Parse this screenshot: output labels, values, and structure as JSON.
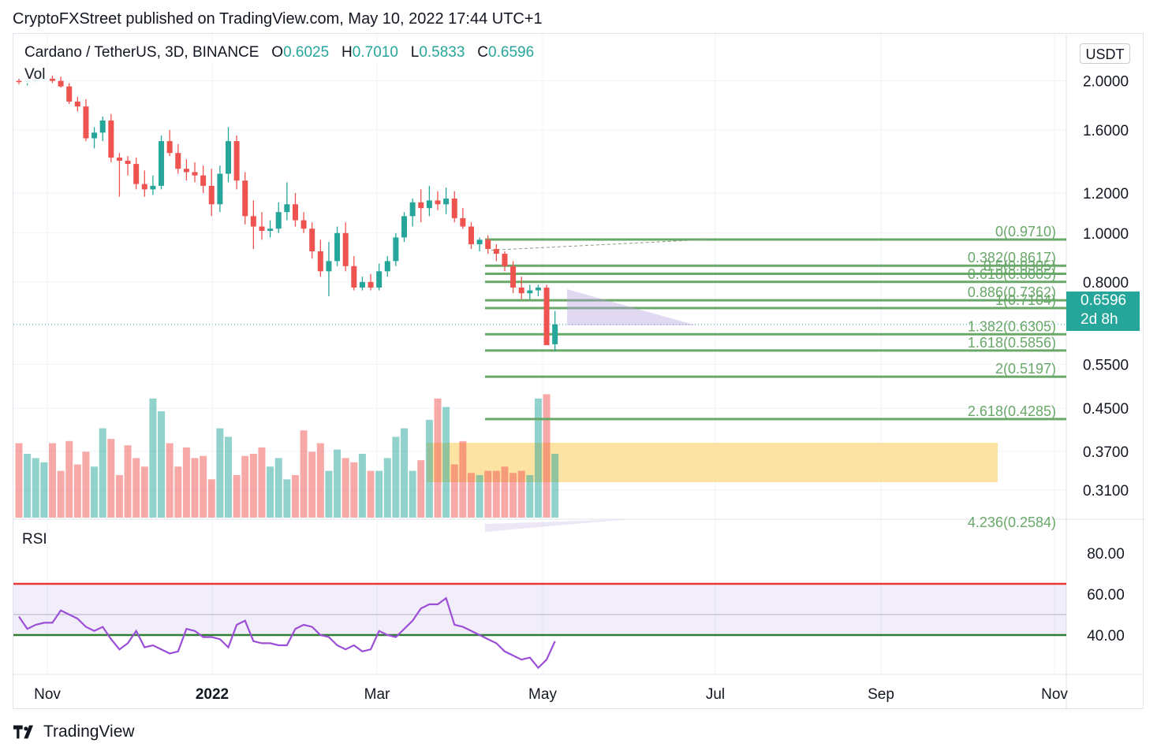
{
  "header": {
    "text": "CryptoFXStreet published on TradingView.com, May 10, 2022 17:44 UTC+1"
  },
  "legend": {
    "symbol": "Cardano / TetherUS, 3D, BINANCE",
    "o_label": "O",
    "o_value": "0.6025",
    "h_label": "H",
    "h_value": "0.7010",
    "l_label": "L",
    "l_value": "0.5833",
    "c_label": "C",
    "c_value": "0.6596"
  },
  "vol_label": "Vol",
  "rsi_label": "RSI",
  "currency_button": "USDT",
  "price_tag": {
    "price": "0.6596",
    "countdown": "2d 8h"
  },
  "footer": {
    "brand": "TradingView"
  },
  "colors": {
    "up": "#26a69a",
    "down": "#ef5350",
    "fib": "#6aa86a",
    "rsi": "#9c4fd6",
    "rsi_top": "#e53935",
    "rsi_bottom": "#2e7d32",
    "zone": "#fddc8c"
  },
  "chart_data": {
    "type": "candlestick",
    "y_scale": "log",
    "price_axis_labels": [
      "2.0000",
      "1.6000",
      "1.2000",
      "1.0000",
      "0.8000",
      "0.6596",
      "0.5500",
      "0.4500",
      "0.3700",
      "0.3100"
    ],
    "time_axis_labels": [
      "Nov",
      "2022",
      "Mar",
      "May",
      "Jul",
      "Sep",
      "Nov"
    ],
    "candles": [
      [
        2.0,
        2.02,
        1.97,
        1.99
      ],
      [
        1.99,
        2.01,
        1.96,
        2.0
      ],
      [
        2.0,
        2.03,
        1.98,
        2.01
      ],
      [
        2.01,
        2.04,
        1.99,
        2.02
      ],
      [
        2.02,
        2.05,
        1.98,
        2.0
      ],
      [
        2.0,
        2.04,
        1.94,
        1.95
      ],
      [
        1.95,
        1.98,
        1.8,
        1.82
      ],
      [
        1.82,
        1.86,
        1.74,
        1.78
      ],
      [
        1.78,
        1.84,
        1.52,
        1.54
      ],
      [
        1.54,
        1.62,
        1.47,
        1.58
      ],
      [
        1.58,
        1.7,
        1.52,
        1.67
      ],
      [
        1.67,
        1.72,
        1.38,
        1.41
      ],
      [
        1.41,
        1.44,
        1.18,
        1.39
      ],
      [
        1.39,
        1.42,
        1.3,
        1.37
      ],
      [
        1.37,
        1.41,
        1.22,
        1.25
      ],
      [
        1.25,
        1.33,
        1.18,
        1.22
      ],
      [
        1.22,
        1.3,
        1.19,
        1.24
      ],
      [
        1.24,
        1.56,
        1.22,
        1.52
      ],
      [
        1.52,
        1.6,
        1.42,
        1.44
      ],
      [
        1.44,
        1.5,
        1.31,
        1.34
      ],
      [
        1.34,
        1.4,
        1.27,
        1.32
      ],
      [
        1.32,
        1.38,
        1.26,
        1.3
      ],
      [
        1.3,
        1.36,
        1.2,
        1.24
      ],
      [
        1.24,
        1.34,
        1.08,
        1.14
      ],
      [
        1.14,
        1.36,
        1.1,
        1.31
      ],
      [
        1.31,
        1.62,
        1.26,
        1.52
      ],
      [
        1.52,
        1.56,
        1.22,
        1.27
      ],
      [
        1.27,
        1.32,
        1.04,
        1.08
      ],
      [
        1.08,
        1.16,
        0.93,
        1.03
      ],
      [
        1.03,
        1.1,
        0.97,
        1.01
      ],
      [
        1.01,
        1.06,
        0.98,
        1.02
      ],
      [
        1.02,
        1.15,
        1.0,
        1.1
      ],
      [
        1.1,
        1.26,
        1.06,
        1.14
      ],
      [
        1.14,
        1.2,
        1.03,
        1.06
      ],
      [
        1.06,
        1.1,
        1.0,
        1.02
      ],
      [
        1.02,
        1.05,
        0.89,
        0.92
      ],
      [
        0.92,
        0.97,
        0.82,
        0.84
      ],
      [
        0.84,
        0.96,
        0.75,
        0.88
      ],
      [
        0.88,
        1.03,
        0.86,
        1.0
      ],
      [
        1.0,
        1.05,
        0.84,
        0.86
      ],
      [
        0.86,
        0.9,
        0.77,
        0.78
      ],
      [
        0.78,
        0.82,
        0.77,
        0.8
      ],
      [
        0.8,
        0.83,
        0.77,
        0.78
      ],
      [
        0.78,
        0.87,
        0.77,
        0.84
      ],
      [
        0.84,
        0.9,
        0.82,
        0.88
      ],
      [
        0.88,
        1.0,
        0.86,
        0.98
      ],
      [
        0.98,
        1.1,
        0.96,
        1.08
      ],
      [
        1.08,
        1.17,
        1.03,
        1.15
      ],
      [
        1.15,
        1.22,
        1.05,
        1.12
      ],
      [
        1.12,
        1.24,
        1.08,
        1.16
      ],
      [
        1.16,
        1.21,
        1.11,
        1.14
      ],
      [
        1.14,
        1.23,
        1.09,
        1.17
      ],
      [
        1.17,
        1.21,
        1.05,
        1.07
      ],
      [
        1.07,
        1.12,
        1.02,
        1.03
      ],
      [
        1.03,
        1.05,
        0.93,
        0.95
      ],
      [
        0.95,
        0.98,
        0.92,
        0.97
      ],
      [
        0.97,
        0.99,
        0.91,
        0.93
      ],
      [
        0.93,
        0.95,
        0.88,
        0.91
      ],
      [
        0.91,
        0.92,
        0.84,
        0.86
      ],
      [
        0.86,
        0.88,
        0.76,
        0.78
      ],
      [
        0.78,
        0.82,
        0.74,
        0.76
      ],
      [
        0.76,
        0.79,
        0.74,
        0.77
      ],
      [
        0.77,
        0.79,
        0.75,
        0.78
      ],
      [
        0.78,
        0.79,
        0.6,
        0.6
      ],
      [
        0.6025,
        0.701,
        0.5833,
        0.6596
      ]
    ],
    "volume_relative": [
      0.35,
      0.3,
      0.28,
      0.26,
      0.35,
      0.22,
      0.36,
      0.25,
      0.31,
      0.24,
      0.42,
      0.37,
      0.2,
      0.34,
      0.28,
      0.24,
      0.56,
      0.5,
      0.35,
      0.24,
      0.33,
      0.28,
      0.29,
      0.18,
      0.42,
      0.38,
      0.2,
      0.29,
      0.3,
      0.33,
      0.24,
      0.28,
      0.18,
      0.2,
      0.41,
      0.31,
      0.35,
      0.22,
      0.32,
      0.28,
      0.26,
      0.3,
      0.22,
      0.22,
      0.28,
      0.38,
      0.42,
      0.22,
      0.27,
      0.46,
      0.56,
      0.52,
      0.25,
      0.36,
      0.21,
      0.2,
      0.22,
      0.22,
      0.24,
      0.21,
      0.22,
      0.2,
      0.56,
      0.58,
      0.3
    ],
    "fibonacci_levels": [
      {
        "label": "0(0.9710)",
        "value": 0.971
      },
      {
        "label": "0.382(0.8617)",
        "value": 0.8617
      },
      {
        "label": "0.5(0.8305)",
        "value": 0.8305
      },
      {
        "label": "0.618(0.8005)",
        "value": 0.8005
      },
      {
        "label": "0.886(0.7362)",
        "value": 0.7362
      },
      {
        "label": "1(0.7104)",
        "value": 0.7104
      },
      {
        "label": "1.382(0.6305)",
        "value": 0.6305
      },
      {
        "label": "1.618(0.5856)",
        "value": 0.5856
      },
      {
        "label": "2(0.5197)",
        "value": 0.5197
      },
      {
        "label": "2.618(0.4285)",
        "value": 0.4285
      },
      {
        "label": "4.236(0.2584)",
        "value": 0.2584
      }
    ],
    "rsi": {
      "axis_labels": [
        "80.00",
        "60.00",
        "40.00"
      ],
      "upper_band": 65,
      "lower_band": 40,
      "mid": 50,
      "values": [
        49,
        43,
        45,
        46,
        46,
        52,
        50,
        48,
        44,
        42,
        44,
        38,
        33,
        36,
        42,
        34,
        35,
        33,
        31,
        32,
        43,
        42,
        39,
        39,
        38,
        34,
        45,
        47,
        37,
        36,
        36,
        35,
        35,
        43,
        45,
        44,
        40,
        39,
        35,
        33,
        35,
        32,
        33,
        42,
        40,
        39,
        43,
        47,
        53,
        55,
        55,
        58,
        45,
        44,
        42,
        40,
        38,
        36,
        32,
        30,
        28,
        29,
        24,
        28,
        37
      ]
    }
  }
}
